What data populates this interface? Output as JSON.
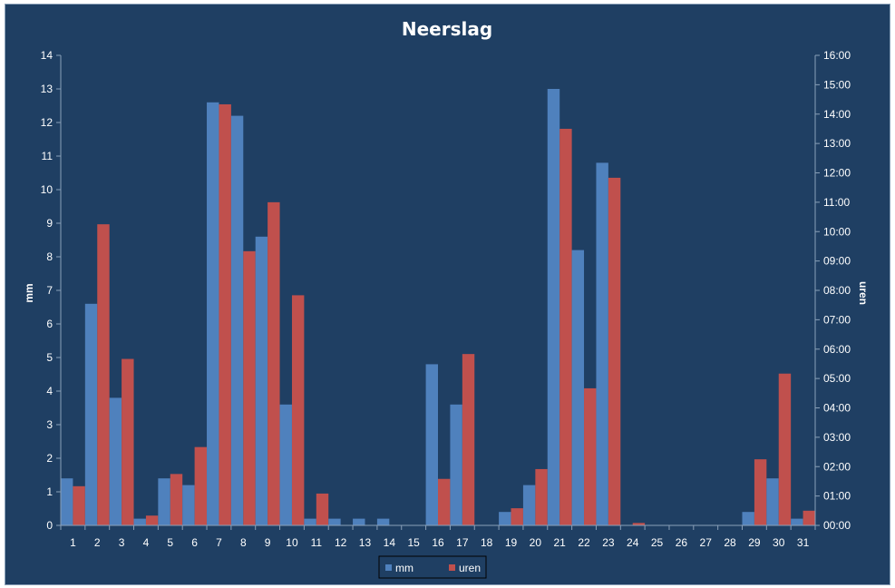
{
  "chart_data": {
    "type": "bar",
    "title": "Neerslag",
    "categories": [
      "1",
      "2",
      "3",
      "4",
      "5",
      "6",
      "7",
      "8",
      "9",
      "10",
      "11",
      "12",
      "13",
      "14",
      "15",
      "16",
      "17",
      "18",
      "19",
      "20",
      "21",
      "22",
      "23",
      "24",
      "25",
      "26",
      "27",
      "28",
      "29",
      "30",
      "31"
    ],
    "series": [
      {
        "name": "mm",
        "axis": "left",
        "color": "#4f81bd",
        "values": [
          1.4,
          6.6,
          3.8,
          0.2,
          1.4,
          1.2,
          12.6,
          12.2,
          8.6,
          3.6,
          0.2,
          0.2,
          0.2,
          0.2,
          0,
          4.8,
          3.6,
          0,
          0.4,
          1.2,
          13.0,
          8.2,
          10.8,
          0,
          0,
          0,
          0,
          0,
          0.4,
          1.4,
          0.2
        ]
      },
      {
        "name": "uren",
        "axis": "right",
        "color": "#c0504d",
        "values": [
          "01:20",
          "10:15",
          "05:40",
          "00:20",
          "01:45",
          "02:40",
          "14:20",
          "09:20",
          "11:00",
          "07:50",
          "01:05",
          "00:00",
          "00:00",
          "00:00",
          "00:00",
          "01:35",
          "05:50",
          "00:00",
          "00:35",
          "01:55",
          "13:30",
          "04:40",
          "11:50",
          "00:05",
          "00:00",
          "00:00",
          "00:00",
          "00:00",
          "02:15",
          "05:10",
          "00:30"
        ]
      }
    ],
    "ylabel": "mm",
    "ylim": [
      0,
      14
    ],
    "yticks": [
      "0",
      "1",
      "2",
      "3",
      "4",
      "5",
      "6",
      "7",
      "8",
      "9",
      "10",
      "11",
      "12",
      "13",
      "14"
    ],
    "y2label": "uren",
    "y2lim": [
      "00:00",
      "16:00"
    ],
    "y2ticks": [
      "00:00",
      "01:00",
      "02:00",
      "03:00",
      "04:00",
      "05:00",
      "06:00",
      "07:00",
      "08:00",
      "09:00",
      "10:00",
      "11:00",
      "12:00",
      "13:00",
      "14:00",
      "15:00",
      "16:00"
    ],
    "grid": false,
    "legend": "bottom"
  },
  "colors": {
    "background": "#1f3f63",
    "axis": "#8aa0b8",
    "mm": "#4f81bd",
    "uren": "#c0504d"
  }
}
